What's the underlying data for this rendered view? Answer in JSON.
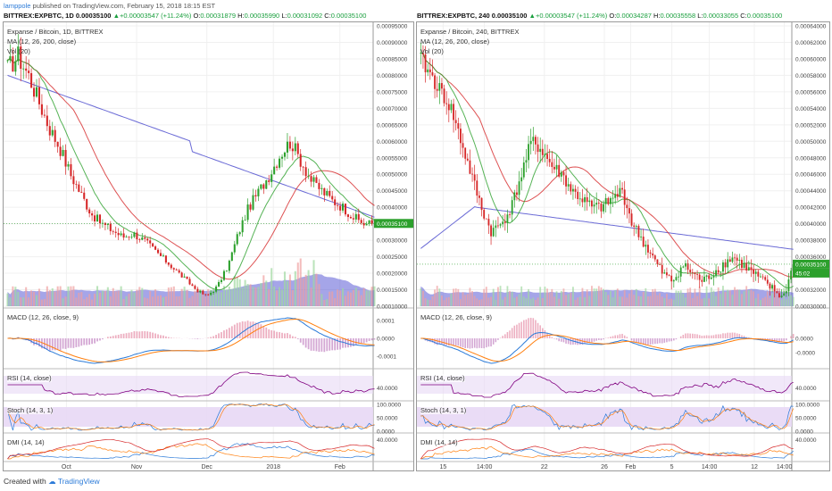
{
  "topline": {
    "author": "lamppole",
    "text": " published on TradingView.com, February 15, 2018 18:15 EST"
  },
  "left": {
    "header": {
      "symbol": "BITTREX:EXPBTC, 1D",
      "last": "0.00035100",
      "change": "+0.00003547 (+11.24%)",
      "o_label": "O:",
      "o": "0.00031879",
      "h_label": "H:",
      "h": "0.00035990",
      "l_label": "L:",
      "l": "0.00031092",
      "c_label": "C:",
      "c": "0.00035100"
    },
    "legend": {
      "title": "Expanse / Bitcoin, 1D, BITTREX",
      "ma": "MA (12, 26, 200, close)",
      "vol": "Vol (20)"
    },
    "indicators": {
      "macd": "MACD (12, 26, close, 9)",
      "rsi": "RSI (14, close)",
      "stoch": "Stoch (14, 3, 1)",
      "dmi": "DMI (14, 14)"
    },
    "price_ticks": [
      "0.00095000",
      "0.00090000",
      "0.00085000",
      "0.00080000",
      "0.00075000",
      "0.00070000",
      "0.00065000",
      "0.00060000",
      "0.00055000",
      "0.00050000",
      "0.00045000",
      "0.00040000",
      "0.00035100",
      "0.00030000",
      "0.00025000",
      "0.00020000",
      "0.00015000",
      "0.00010000"
    ],
    "macd_ticks": [
      "0.0001",
      "0.0000",
      "-0.0001"
    ],
    "rsi_ticks": [
      "40.0000"
    ],
    "stoch_ticks": [
      "100.0000",
      "50.0000",
      "0.0000"
    ],
    "dmi_ticks": [
      "40.0000"
    ],
    "x_labels": [
      "Oct",
      "Nov",
      "Dec",
      "2018",
      "Feb"
    ]
  },
  "right": {
    "header": {
      "symbol": "BITTREX:EXPBTC, 240",
      "last": "0.00035100",
      "change": "+0.00003547 (+11.24%)",
      "o_label": "O:",
      "o": "0.00034287",
      "h_label": "H:",
      "h": "0.00035558",
      "l_label": "L:",
      "l": "0.00033055",
      "c_label": "C:",
      "c": "0.00035100"
    },
    "legend": {
      "title": "Expanse / Bitcoin, 240, BITTREX",
      "ma": "MA (12, 26, 200, close)",
      "vol": "Vol (20)"
    },
    "indicators": {
      "macd": "MACD (12, 26, close, 9)",
      "rsi": "RSI (14, close)",
      "stoch": "Stoch (14, 3, 1)",
      "dmi": "DMI (14, 14)"
    },
    "price_ticks": [
      "0.00064000",
      "0.00062000",
      "0.00060000",
      "0.00058000",
      "0.00056000",
      "0.00054000",
      "0.00052000",
      "0.00050000",
      "0.00048000",
      "0.00046000",
      "0.00044000",
      "0.00042000",
      "0.00040000",
      "0.00038000",
      "0.00036000",
      "0.00035100",
      "0.00032000",
      "0.00030000"
    ],
    "price_countdown": "45:02",
    "macd_ticks": [
      "0.0000",
      "-0.0000"
    ],
    "rsi_ticks": [
      "40.0000"
    ],
    "stoch_ticks": [
      "100.0000",
      "50.0000",
      "0.0000"
    ],
    "dmi_ticks": [
      "40.0000"
    ],
    "x_labels": [
      "15",
      "14:00",
      "22",
      "26",
      "Feb",
      "5",
      "14:00",
      "12",
      "14:00"
    ]
  },
  "footer": {
    "created": "Created with",
    "brand": "TradingView"
  },
  "colors": {
    "up": "#2ca02c",
    "down": "#d62728",
    "ma12": "#2ca02c",
    "ma26": "#d62728",
    "ma200": "#6b6bd6",
    "volume": "#5b5bd6",
    "macd": "#2a7ad8",
    "signal": "#ff7f0e",
    "rsi": "#800080",
    "band": "#e8d8f5"
  },
  "chart_data": [
    {
      "type": "candlestick",
      "title": "Expanse / Bitcoin, 1D, BITTREX",
      "ylim": [
        0.0001,
        0.00095
      ],
      "x_ticks": [
        "Oct",
        "Nov",
        "Dec",
        "2018",
        "Feb"
      ],
      "close_approx": [
        0.00082,
        0.00086,
        0.0008,
        0.00072,
        0.00064,
        0.00058,
        0.0005,
        0.00044,
        0.00038,
        0.00035,
        0.00033,
        0.00031,
        0.00032,
        0.0003,
        0.00027,
        0.00024,
        0.00021,
        0.00018,
        0.00015,
        0.00013,
        0.00016,
        0.00022,
        0.00032,
        0.0004,
        0.00045,
        0.0005,
        0.00056,
        0.0006,
        0.00054,
        0.00048,
        0.00045,
        0.00042,
        0.0004,
        0.00037,
        0.00035,
        0.000351
      ],
      "last_price": 0.000351
    },
    {
      "type": "candlestick",
      "title": "Expanse / Bitcoin, 240, BITTREX",
      "ylim": [
        0.0003,
        0.00064
      ],
      "x_ticks": [
        "15",
        "14:00",
        "22",
        "26",
        "Feb",
        "5",
        "14:00",
        "12",
        "14:00"
      ],
      "close_approx": [
        0.0006,
        0.00058,
        0.00056,
        0.00054,
        0.0005,
        0.00046,
        0.00042,
        0.00039,
        0.0004,
        0.00042,
        0.00046,
        0.0005,
        0.00049,
        0.00047,
        0.00046,
        0.00044,
        0.00043,
        0.00042,
        0.00042,
        0.00043,
        0.00044,
        0.0004,
        0.00038,
        0.00036,
        0.00034,
        0.00033,
        0.00035,
        0.00034,
        0.00033,
        0.00034,
        0.00035,
        0.00036,
        0.00035,
        0.00034,
        0.00033,
        0.00032,
        0.00031,
        0.000351
      ],
      "last_price": 0.000351
    }
  ]
}
